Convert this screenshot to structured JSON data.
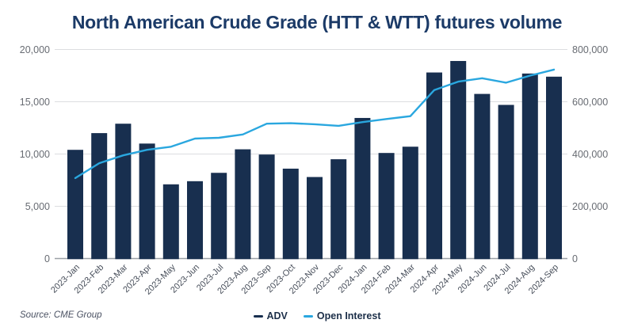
{
  "title": "North American Crude Grade (HTT & WTT) futures volume",
  "source": "Source: CME Group",
  "legend": {
    "adv_label": "ADV",
    "open_interest_label": "Open Interest"
  },
  "colors": {
    "bar": "#182f4f",
    "line": "#2aa7df",
    "title": "#1b3a67",
    "grid": "#dcdde0",
    "axis_line": "#9aa0a6",
    "numeric_label": "#686c73",
    "month_label": "#474e5a",
    "legend_text": "#1c2f49",
    "source_text": "#4b5263"
  },
  "chart_data": {
    "type": "combo",
    "title": "North American Crude Grade (HTT & WTT) futures volume",
    "categories": [
      "2023-Jan",
      "2023-Feb",
      "2023-Mar",
      "2023-Apr",
      "2023-May",
      "2023-Jun",
      "2023-Jul",
      "2023-Aug",
      "2023-Sep",
      "2023-Oct",
      "2023-Nov",
      "2023-Dec",
      "2024-Jan",
      "2024-Feb",
      "2024-Mar",
      "2024-Apr",
      "2024-May",
      "2024-Jun",
      "2024-Jul",
      "2024-Aug",
      "2024-Sep"
    ],
    "series": [
      {
        "name": "ADV",
        "type": "bar",
        "axis": "left",
        "color": "#182f4f",
        "values": [
          10400,
          12000,
          12900,
          11000,
          7100,
          7400,
          8200,
          10450,
          9950,
          8600,
          7800,
          9500,
          13450,
          10100,
          10700,
          17800,
          18900,
          15750,
          14700,
          17700,
          17400
        ]
      },
      {
        "name": "Open Interest",
        "type": "line",
        "axis": "right",
        "color": "#2aa7df",
        "values": [
          308000,
          365000,
          395000,
          416000,
          428000,
          459000,
          462000,
          475000,
          516000,
          518000,
          514000,
          508000,
          522000,
          534000,
          545000,
          645000,
          677000,
          690000,
          673000,
          700000,
          723000
        ]
      }
    ],
    "left_axis": {
      "min": 0,
      "max": 20000,
      "step": 5000,
      "tick_labels": [
        "0",
        "5,000",
        "10,000",
        "15,000",
        "20,000"
      ]
    },
    "right_axis": {
      "min": 0,
      "max": 800000,
      "step": 200000,
      "tick_labels": [
        "0",
        "200,000",
        "400,000",
        "600,000",
        "800,000"
      ]
    },
    "grid": true,
    "legend_position": "bottom-center"
  }
}
